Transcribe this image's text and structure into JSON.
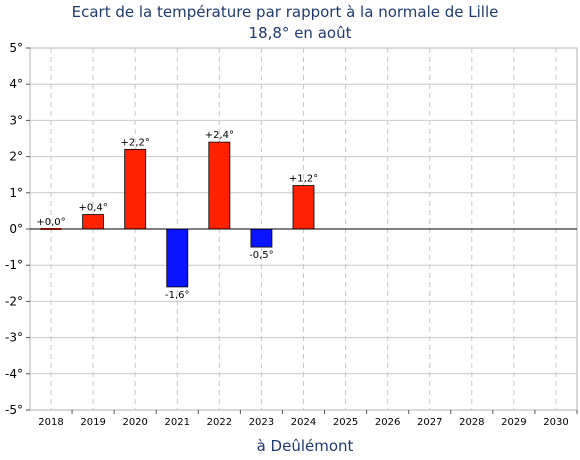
{
  "chart_data": {
    "type": "bar",
    "title": "Ecart de la température par rapport à la normale de Lille",
    "subtitle": "18,8° en août",
    "xlabel": "à Deûlémont",
    "ylabel": "",
    "ylim": [
      -5,
      5
    ],
    "yticks": [
      "5°",
      "4°",
      "3°",
      "2°",
      "1°",
      "0°",
      "-1°",
      "-2°",
      "-3°",
      "-4°",
      "-5°"
    ],
    "categories": [
      "2018",
      "2019",
      "2020",
      "2021",
      "2022",
      "2023",
      "2024",
      "2025",
      "2026",
      "2027",
      "2028",
      "2029",
      "2030"
    ],
    "values": [
      0.0,
      0.4,
      2.2,
      -1.6,
      2.4,
      -0.5,
      1.2,
      null,
      null,
      null,
      null,
      null,
      null
    ],
    "data_labels": [
      "+0,0°",
      "+0,4°",
      "+2,2°",
      "-1,6°",
      "+2,4°",
      "-0,5°",
      "+1,2°",
      "",
      "",
      "",
      "",
      "",
      ""
    ],
    "grid": true,
    "colors": {
      "positive": "#ff2200",
      "negative": "#0a14ff",
      "title": "#1f3a6e"
    }
  }
}
